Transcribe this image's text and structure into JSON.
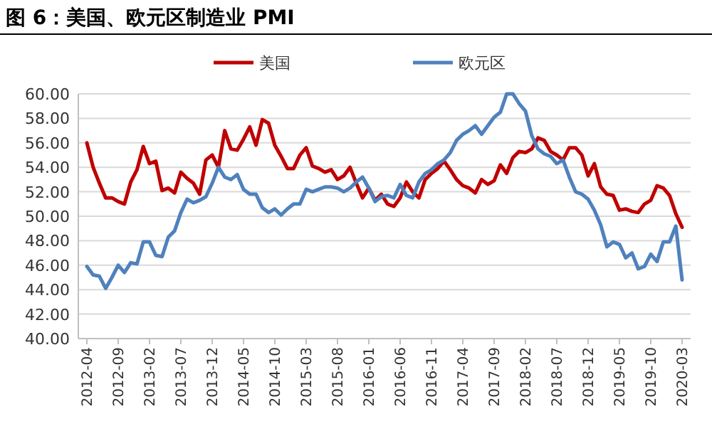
{
  "chart_data": {
    "type": "line",
    "title": "图 6：美国、欧元区制造业 PMI",
    "categories": [
      "2012-04",
      null,
      null,
      null,
      null,
      "2012-09",
      null,
      null,
      null,
      null,
      "2013-02",
      null,
      null,
      null,
      null,
      "2013-07",
      null,
      null,
      null,
      null,
      "2013-12",
      null,
      null,
      null,
      null,
      "2014-05",
      null,
      null,
      null,
      null,
      "2014-10",
      null,
      null,
      null,
      null,
      "2015-03",
      null,
      null,
      null,
      null,
      "2015-08",
      null,
      null,
      null,
      null,
      "2016-01",
      null,
      null,
      null,
      null,
      "2016-06",
      null,
      null,
      null,
      null,
      "2016-11",
      null,
      null,
      null,
      null,
      "2017-04",
      null,
      null,
      null,
      null,
      "2017-09",
      null,
      null,
      null,
      null,
      "2018-02",
      null,
      null,
      null,
      null,
      "2018-07",
      null,
      null,
      null,
      null,
      "2018-12",
      null,
      null,
      null,
      null,
      "2019-05",
      null,
      null,
      null,
      null,
      "2019-10",
      null,
      null,
      null,
      null,
      "2020-03"
    ],
    "series": [
      {
        "name": "美国",
        "color": "#c00000",
        "values": [
          56.0,
          54.0,
          52.7,
          51.5,
          51.5,
          51.2,
          51.0,
          52.8,
          53.8,
          55.7,
          54.3,
          54.5,
          52.1,
          52.3,
          51.9,
          53.6,
          53.1,
          52.7,
          51.8,
          54.6,
          55.0,
          54.0,
          57.0,
          55.5,
          55.4,
          56.3,
          57.3,
          55.8,
          57.9,
          57.6,
          55.8,
          54.9,
          53.9,
          53.9,
          55.0,
          55.6,
          54.1,
          53.9,
          53.6,
          53.8,
          53.0,
          53.3,
          54.0,
          52.7,
          51.5,
          52.3,
          51.3,
          51.8,
          51.0,
          50.8,
          51.5,
          52.8,
          52.0,
          51.5,
          53.0,
          53.5,
          53.9,
          54.5,
          53.8,
          53.0,
          52.5,
          52.3,
          51.9,
          53.0,
          52.6,
          52.9,
          54.2,
          53.5,
          54.8,
          55.3,
          55.2,
          55.5,
          56.4,
          56.2,
          55.3,
          55.0,
          54.6,
          55.6,
          55.6,
          55.0,
          53.3,
          54.3,
          52.4,
          51.8,
          51.7,
          50.5,
          50.6,
          50.4,
          50.3,
          51.0,
          51.3,
          52.5,
          52.3,
          51.7,
          50.2,
          49.1
        ]
      },
      {
        "name": "欧元区",
        "color": "#4f81bd",
        "values": [
          45.9,
          45.2,
          45.1,
          44.1,
          45.0,
          46.0,
          45.4,
          46.2,
          46.1,
          47.9,
          47.9,
          46.8,
          46.7,
          48.3,
          48.8,
          50.3,
          51.4,
          51.1,
          51.3,
          51.6,
          52.7,
          54.0,
          53.2,
          53.0,
          53.4,
          52.2,
          51.8,
          51.8,
          50.7,
          50.3,
          50.6,
          50.1,
          50.6,
          51.0,
          51.0,
          52.2,
          52.0,
          52.2,
          52.4,
          52.4,
          52.3,
          52.0,
          52.3,
          52.8,
          53.2,
          52.3,
          51.2,
          51.6,
          51.7,
          51.5,
          52.6,
          51.7,
          51.5,
          52.8,
          53.5,
          53.8,
          54.3,
          54.6,
          55.2,
          56.2,
          56.7,
          57.0,
          57.4,
          56.7,
          57.4,
          58.1,
          58.5,
          60.0,
          60.0,
          59.2,
          58.6,
          56.6,
          55.5,
          55.1,
          54.9,
          54.3,
          54.6,
          53.2,
          52.0,
          51.8,
          51.4,
          50.5,
          49.3,
          47.5,
          47.9,
          47.7,
          46.6,
          47.0,
          45.7,
          45.9,
          46.9,
          46.3,
          47.9,
          47.9,
          49.2,
          44.8
        ]
      }
    ],
    "ylim": [
      40,
      60
    ],
    "yticks": [
      {
        "value": 40,
        "label": "40.00"
      },
      {
        "value": 42,
        "label": "42.00"
      },
      {
        "value": 44,
        "label": "44.00"
      },
      {
        "value": 46,
        "label": "46.00"
      },
      {
        "value": 48,
        "label": "48.00"
      },
      {
        "value": 50,
        "label": "50.00"
      },
      {
        "value": 52,
        "label": "52.00"
      },
      {
        "value": 54,
        "label": "54.00"
      },
      {
        "value": 56,
        "label": "56.00"
      },
      {
        "value": 58,
        "label": "58.00"
      },
      {
        "value": 60,
        "label": "60.00"
      }
    ],
    "grid": "y",
    "legend": "top"
  }
}
